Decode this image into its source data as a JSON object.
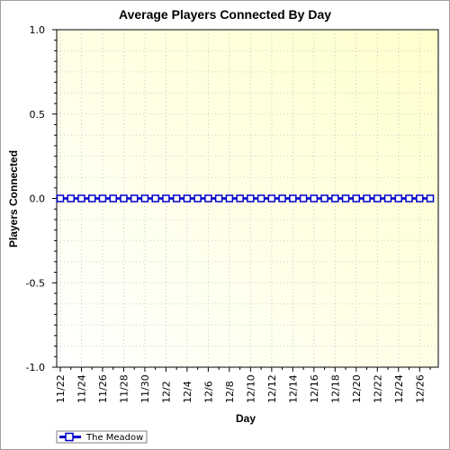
{
  "chart_data": {
    "type": "line",
    "title": "Average Players Connected By Day",
    "xlabel": "Day",
    "ylabel": "Players Connected",
    "ylim": [
      -1.0,
      1.0
    ],
    "y_ticks": [
      "1.0",
      "0.5",
      "0.0",
      "-0.5",
      "-1.0"
    ],
    "y_tick_values": [
      1.0,
      0.5,
      0.0,
      -0.5,
      -1.0
    ],
    "x_tick_labels": [
      "11/22",
      "11/24",
      "11/26",
      "11/28",
      "11/30",
      "12/2",
      "12/4",
      "12/6",
      "12/8",
      "12/10",
      "12/12",
      "12/14",
      "12/16",
      "12/18",
      "12/20",
      "12/22",
      "12/24",
      "12/26"
    ],
    "x": [
      "11/22",
      "11/23",
      "11/24",
      "11/25",
      "11/26",
      "11/27",
      "11/28",
      "11/29",
      "11/30",
      "12/1",
      "12/2",
      "12/3",
      "12/4",
      "12/5",
      "12/6",
      "12/7",
      "12/8",
      "12/9",
      "12/10",
      "12/11",
      "12/12",
      "12/13",
      "12/14",
      "12/15",
      "12/16",
      "12/17",
      "12/18",
      "12/19",
      "12/20",
      "12/21",
      "12/22",
      "12/23",
      "12/24",
      "12/25",
      "12/26",
      "12/27"
    ],
    "series": [
      {
        "name": "The Meadow",
        "color": "#0000cc",
        "values": [
          0,
          0,
          0,
          0,
          0,
          0,
          0,
          0,
          0,
          0,
          0,
          0,
          0,
          0,
          0,
          0,
          0,
          0,
          0,
          0,
          0,
          0,
          0,
          0,
          0,
          0,
          0,
          0,
          0,
          0,
          0,
          0,
          0,
          0,
          0,
          0
        ]
      }
    ],
    "grid": true,
    "legend_position": "bottom-left",
    "background_gradient": [
      "#ffffff",
      "#ffffcc"
    ]
  }
}
